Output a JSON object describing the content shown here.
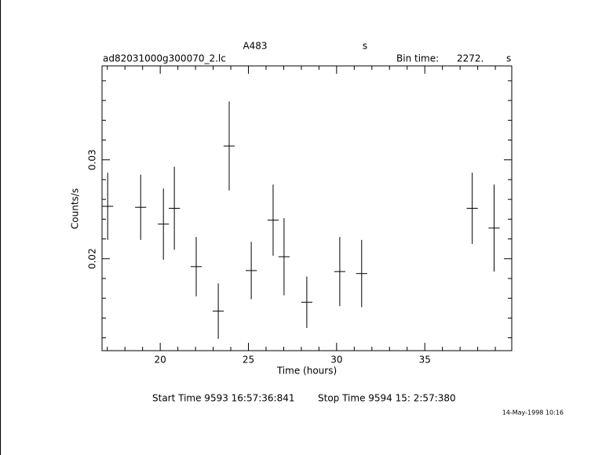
{
  "chart_data": {
    "type": "errorbar",
    "title": "A483",
    "title_unit": "s",
    "subtitle": "ad82031000g300070_2.lc",
    "bin_label": "Bin time:",
    "bin_value": "2272.",
    "bin_unit": "s",
    "xlabel": "Time (hours)",
    "ylabel": "Counts/s",
    "start_time": "Start Time  9593 16:57:36:841",
    "stop_time": "Stop Time  9594 15: 2:57:380",
    "date": "14-May-1998 10:16",
    "color": "#000000",
    "x": [
      17.02,
      18.89,
      20.18,
      20.8,
      22.04,
      23.29,
      23.91,
      25.16,
      26.4,
      27.02,
      28.31,
      30.18,
      31.42,
      37.69,
      38.93
    ],
    "xerr": [
      0.316,
      0.316,
      0.316,
      0.316,
      0.316,
      0.316,
      0.316,
      0.316,
      0.316,
      0.316,
      0.316,
      0.316,
      0.316,
      0.316,
      0.316
    ],
    "values": [
      0.0253,
      0.0252,
      0.0235,
      0.0251,
      0.0192,
      0.0147,
      0.0314,
      0.0188,
      0.0239,
      0.0202,
      0.0156,
      0.0187,
      0.0185,
      0.0251,
      0.0231
    ],
    "errors": [
      0.0034,
      0.0033,
      0.0036,
      0.0042,
      0.003,
      0.0028,
      0.0045,
      0.0029,
      0.0036,
      0.0039,
      0.0026,
      0.0035,
      0.0034,
      0.0036,
      0.0044
    ],
    "xlim": [
      16.7,
      39.93
    ],
    "xticks": [
      20,
      25,
      30,
      35
    ],
    "xminorticks": [
      17,
      18,
      19,
      21,
      22,
      23,
      24,
      26,
      27,
      28,
      29,
      31,
      32,
      33,
      34,
      36,
      37,
      38,
      39
    ],
    "ylim": [
      0.0107,
      0.0395
    ],
    "yticks": [
      0.02,
      0.03
    ],
    "yminorticks": [
      0.012,
      0.014,
      0.016,
      0.018,
      0.022,
      0.024,
      0.026,
      0.028,
      0.032,
      0.034,
      0.036,
      0.038
    ]
  }
}
